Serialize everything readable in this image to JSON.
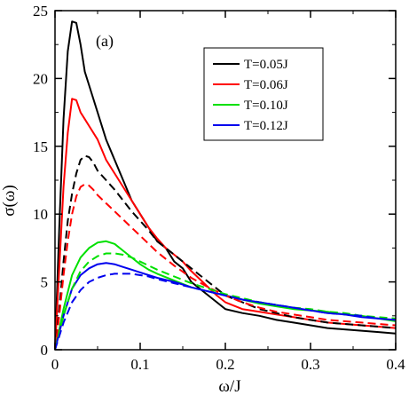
{
  "chart_data": {
    "type": "line",
    "panel_label": "(a)",
    "xlabel": "ω/J",
    "ylabel": "σ(ω)",
    "xlim": [
      0,
      0.4
    ],
    "ylim": [
      0,
      25
    ],
    "x_ticks": [
      0,
      0.1,
      0.2,
      0.3,
      0.4
    ],
    "x_tick_labels": [
      "0",
      "0.1",
      "0.2",
      "0.3",
      "0.4"
    ],
    "y_ticks": [
      0,
      5,
      10,
      15,
      20,
      25
    ],
    "y_tick_labels": [
      "0",
      "5",
      "10",
      "15",
      "20",
      "25"
    ],
    "grid": false,
    "legend_position": "top-right",
    "series": [
      {
        "name": "T=0.05J",
        "color": "#000000",
        "style": "solid",
        "x": [
          0,
          0.005,
          0.01,
          0.015,
          0.02,
          0.025,
          0.03,
          0.035,
          0.04,
          0.05,
          0.06,
          0.07,
          0.08,
          0.09,
          0.1,
          0.11,
          0.12,
          0.13,
          0.14,
          0.15,
          0.16,
          0.17,
          0.18,
          0.19,
          0.2,
          0.22,
          0.24,
          0.26,
          0.28,
          0.3,
          0.32,
          0.34,
          0.36,
          0.38,
          0.4
        ],
        "y": [
          0,
          9,
          17,
          22,
          24.2,
          24.1,
          22.5,
          20.5,
          19.5,
          17.5,
          15.5,
          14,
          12.5,
          11,
          10,
          9,
          8,
          7.5,
          6.5,
          6,
          5,
          4.5,
          4,
          3.5,
          3,
          2.7,
          2.5,
          2.2,
          2,
          1.8,
          1.6,
          1.5,
          1.4,
          1.3,
          1.2
        ]
      },
      {
        "name": "T=0.06J",
        "color": "#ff0000",
        "style": "solid",
        "x": [
          0,
          0.005,
          0.01,
          0.015,
          0.02,
          0.025,
          0.03,
          0.035,
          0.04,
          0.05,
          0.06,
          0.07,
          0.08,
          0.09,
          0.1,
          0.11,
          0.12,
          0.13,
          0.14,
          0.15,
          0.16,
          0.17,
          0.18,
          0.19,
          0.2,
          0.22,
          0.24,
          0.26,
          0.28,
          0.3,
          0.32,
          0.34,
          0.36,
          0.38,
          0.4
        ],
        "y": [
          0,
          6,
          12,
          16,
          18.5,
          18.4,
          17.5,
          17,
          16.5,
          15.5,
          14,
          13,
          12,
          11,
          10,
          9,
          8.2,
          7.5,
          7,
          6.5,
          5.8,
          5.2,
          4.6,
          4,
          3.5,
          3,
          2.8,
          2.6,
          2.4,
          2.2,
          2.0,
          1.9,
          1.8,
          1.7,
          1.6
        ]
      },
      {
        "name": "T=0.10J",
        "color": "#00e000",
        "style": "solid",
        "x": [
          0,
          0.01,
          0.02,
          0.03,
          0.04,
          0.05,
          0.06,
          0.07,
          0.08,
          0.09,
          0.1,
          0.11,
          0.12,
          0.14,
          0.16,
          0.18,
          0.2,
          0.22,
          0.24,
          0.26,
          0.28,
          0.3,
          0.32,
          0.34,
          0.36,
          0.38,
          0.4
        ],
        "y": [
          0,
          3,
          5.5,
          6.8,
          7.5,
          7.9,
          8,
          7.8,
          7.3,
          6.8,
          6.3,
          5.9,
          5.6,
          5.1,
          4.6,
          4.3,
          4,
          3.7,
          3.4,
          3.2,
          3.0,
          2.9,
          2.8,
          2.6,
          2.5,
          2.3,
          2.1
        ]
      },
      {
        "name": "T=0.12J",
        "color": "#0000ee",
        "style": "solid",
        "x": [
          0,
          0.01,
          0.02,
          0.03,
          0.04,
          0.05,
          0.06,
          0.07,
          0.08,
          0.09,
          0.1,
          0.11,
          0.12,
          0.14,
          0.16,
          0.18,
          0.2,
          0.22,
          0.24,
          0.26,
          0.28,
          0.3,
          0.32,
          0.34,
          0.36,
          0.38,
          0.4
        ],
        "y": [
          0,
          2.5,
          4.5,
          5.5,
          6.0,
          6.3,
          6.4,
          6.3,
          6.1,
          5.9,
          5.7,
          5.5,
          5.3,
          5.0,
          4.6,
          4.3,
          4.0,
          3.7,
          3.5,
          3.3,
          3.1,
          2.9,
          2.7,
          2.6,
          2.4,
          2.3,
          2.2
        ]
      },
      {
        "name": "",
        "color": "#000000",
        "style": "dashed",
        "x": [
          0,
          0.005,
          0.01,
          0.015,
          0.02,
          0.025,
          0.03,
          0.035,
          0.04,
          0.045,
          0.05,
          0.06,
          0.07,
          0.08,
          0.09,
          0.1,
          0.11,
          0.12,
          0.13,
          0.14,
          0.15,
          0.16,
          0.17,
          0.18,
          0.19,
          0.2,
          0.22,
          0.24,
          0.26,
          0.28,
          0.3,
          0.32,
          0.34,
          0.36,
          0.38,
          0.4
        ],
        "y": [
          0,
          3,
          6.5,
          9.5,
          11.5,
          13,
          14,
          14.3,
          14.2,
          13.8,
          13.2,
          12.5,
          11.8,
          11,
          10.2,
          9.5,
          8.8,
          8,
          7.5,
          7,
          6.5,
          6,
          5.5,
          5,
          4.5,
          4,
          3.5,
          3,
          2.7,
          2.4,
          2.2,
          2,
          1.9,
          1.8,
          1.7,
          1.6
        ]
      },
      {
        "name": "",
        "color": "#ff0000",
        "style": "dashed",
        "x": [
          0,
          0.005,
          0.01,
          0.015,
          0.02,
          0.025,
          0.03,
          0.035,
          0.04,
          0.045,
          0.05,
          0.06,
          0.07,
          0.08,
          0.09,
          0.1,
          0.11,
          0.12,
          0.14,
          0.16,
          0.18,
          0.2,
          0.22,
          0.24,
          0.26,
          0.28,
          0.3,
          0.32,
          0.34,
          0.36,
          0.38,
          0.4
        ],
        "y": [
          0,
          2.5,
          5.5,
          8,
          10,
          11.3,
          12,
          12.2,
          12.1,
          11.8,
          11.4,
          10.8,
          10.2,
          9.6,
          9,
          8.4,
          7.8,
          7.2,
          6.2,
          5.3,
          4.6,
          4,
          3.5,
          3.1,
          2.8,
          2.6,
          2.4,
          2.2,
          2.1,
          2.0,
          1.9,
          1.8
        ]
      },
      {
        "name": "",
        "color": "#00e000",
        "style": "dashed",
        "x": [
          0,
          0.01,
          0.02,
          0.03,
          0.04,
          0.05,
          0.06,
          0.07,
          0.08,
          0.09,
          0.1,
          0.11,
          0.12,
          0.14,
          0.16,
          0.18,
          0.2,
          0.22,
          0.24,
          0.26,
          0.28,
          0.3,
          0.32,
          0.34,
          0.36,
          0.38,
          0.4
        ],
        "y": [
          0,
          2.5,
          4.5,
          5.8,
          6.5,
          6.9,
          7.1,
          7.1,
          7.0,
          6.8,
          6.5,
          6.2,
          5.9,
          5.4,
          4.9,
          4.5,
          4.1,
          3.8,
          3.5,
          3.3,
          3.1,
          3.0,
          2.8,
          2.7,
          2.5,
          2.4,
          2.3
        ]
      },
      {
        "name": "",
        "color": "#0000ee",
        "style": "dashed",
        "x": [
          0,
          0.01,
          0.02,
          0.03,
          0.04,
          0.05,
          0.06,
          0.07,
          0.08,
          0.09,
          0.1,
          0.11,
          0.12,
          0.14,
          0.16,
          0.18,
          0.2,
          0.22,
          0.24,
          0.26,
          0.28,
          0.3,
          0.32,
          0.34,
          0.36,
          0.38,
          0.4
        ],
        "y": [
          0,
          2,
          3.5,
          4.4,
          5.0,
          5.3,
          5.5,
          5.6,
          5.6,
          5.6,
          5.5,
          5.4,
          5.2,
          4.9,
          4.6,
          4.3,
          4.0,
          3.7,
          3.5,
          3.3,
          3.1,
          2.9,
          2.7,
          2.6,
          2.5,
          2.3,
          2.2
        ]
      }
    ]
  }
}
